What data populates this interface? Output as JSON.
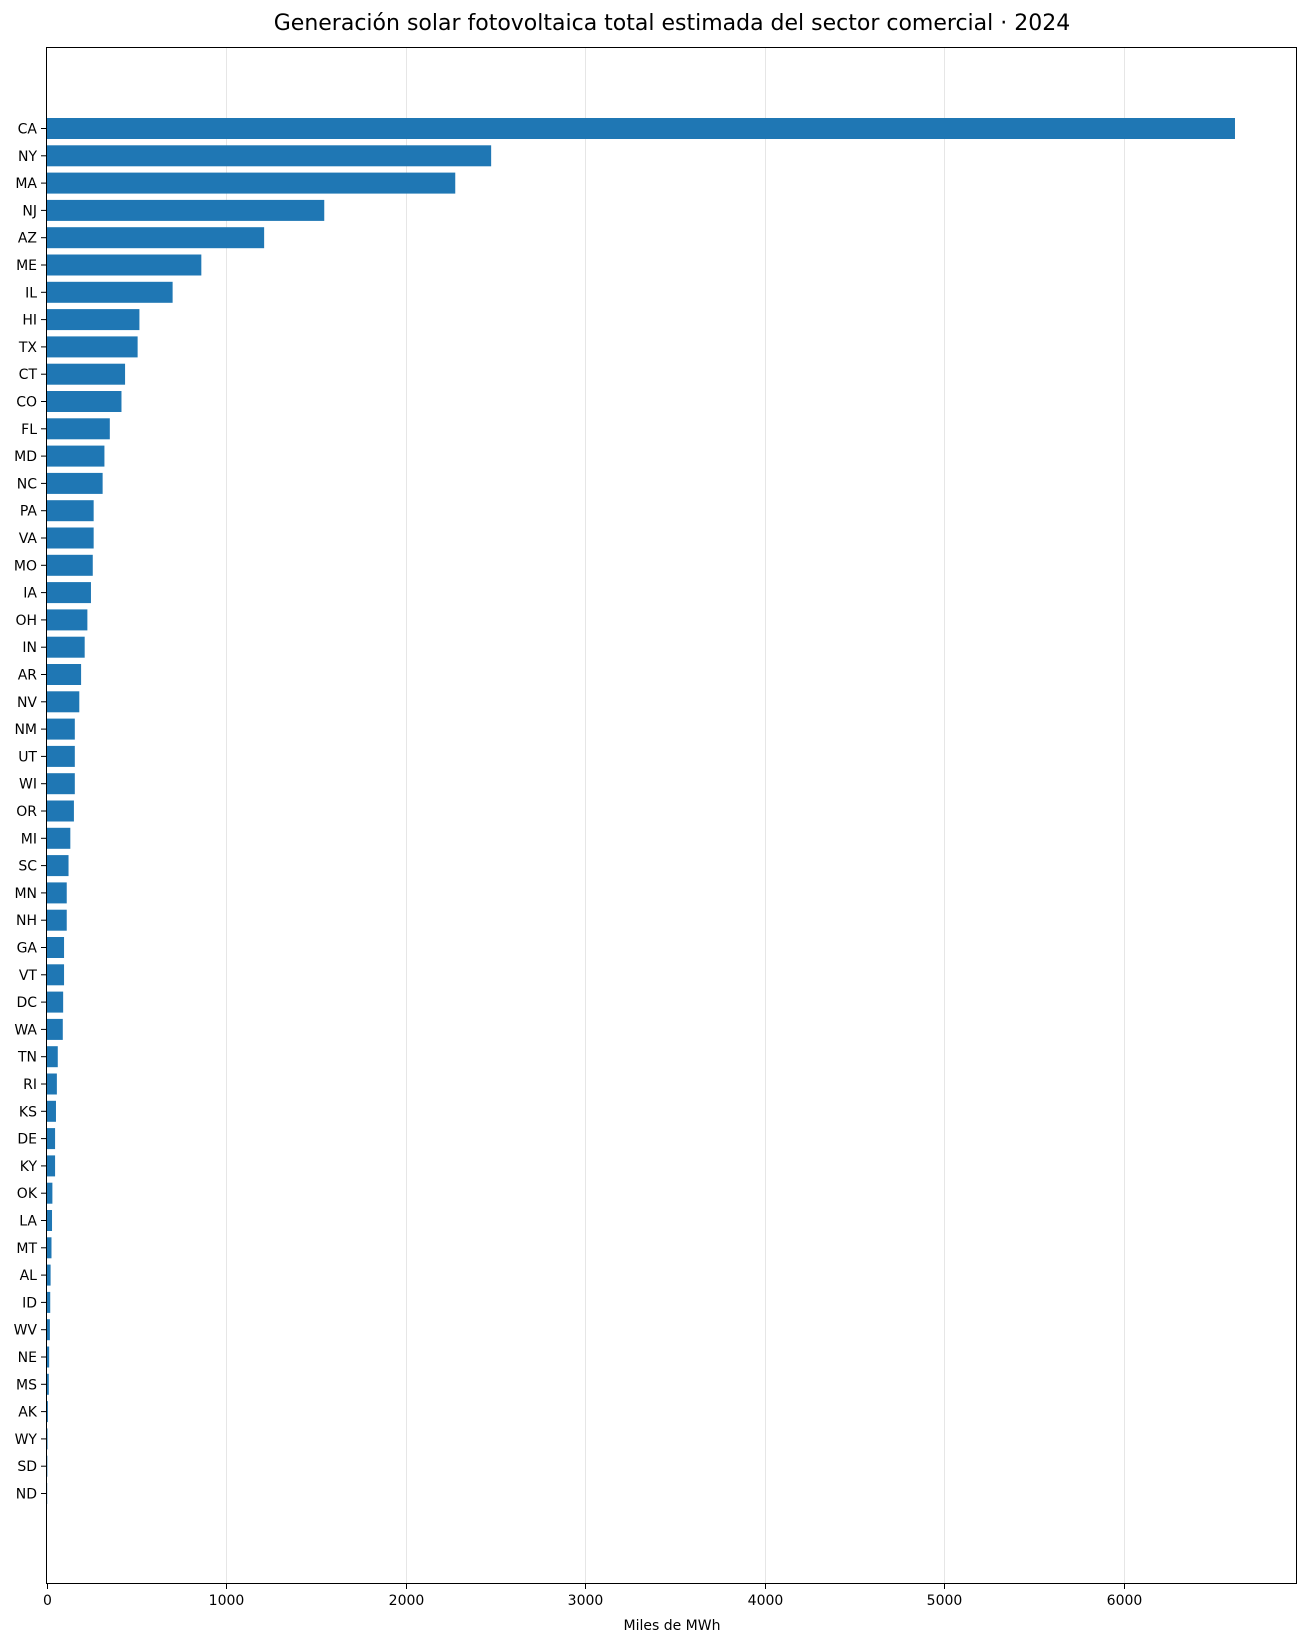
{
  "chart_data": {
    "type": "bar",
    "orientation": "horizontal",
    "title": "Generación solar fotovoltaica total estimada del sector comercial · 2024",
    "xlabel": "Miles de MWh",
    "ylabel": "",
    "xlim": [
      0,
      6960
    ],
    "xticks": [
      0,
      1000,
      2000,
      3000,
      4000,
      5000,
      6000
    ],
    "grid": "vertical",
    "bar_color": "#1f77b4",
    "categories": [
      "CA",
      "NY",
      "MA",
      "NJ",
      "AZ",
      "ME",
      "IL",
      "HI",
      "TX",
      "CT",
      "CO",
      "FL",
      "MD",
      "NC",
      "PA",
      "VA",
      "MO",
      "IA",
      "OH",
      "IN",
      "AR",
      "NV",
      "NM",
      "UT",
      "WI",
      "OR",
      "MI",
      "SC",
      "MN",
      "NH",
      "GA",
      "VT",
      "DC",
      "WA",
      "TN",
      "RI",
      "KS",
      "DE",
      "KY",
      "OK",
      "LA",
      "MT",
      "AL",
      "ID",
      "WV",
      "NE",
      "MS",
      "AK",
      "WY",
      "SD",
      "ND"
    ],
    "values": [
      6620,
      2475,
      2275,
      1545,
      1210,
      860,
      700,
      515,
      505,
      435,
      415,
      350,
      320,
      310,
      260,
      260,
      255,
      245,
      225,
      210,
      190,
      180,
      155,
      155,
      155,
      150,
      130,
      120,
      110,
      110,
      95,
      95,
      90,
      88,
      60,
      55,
      50,
      45,
      45,
      30,
      28,
      25,
      20,
      18,
      16,
      12,
      10,
      5,
      3,
      2,
      1
    ]
  }
}
